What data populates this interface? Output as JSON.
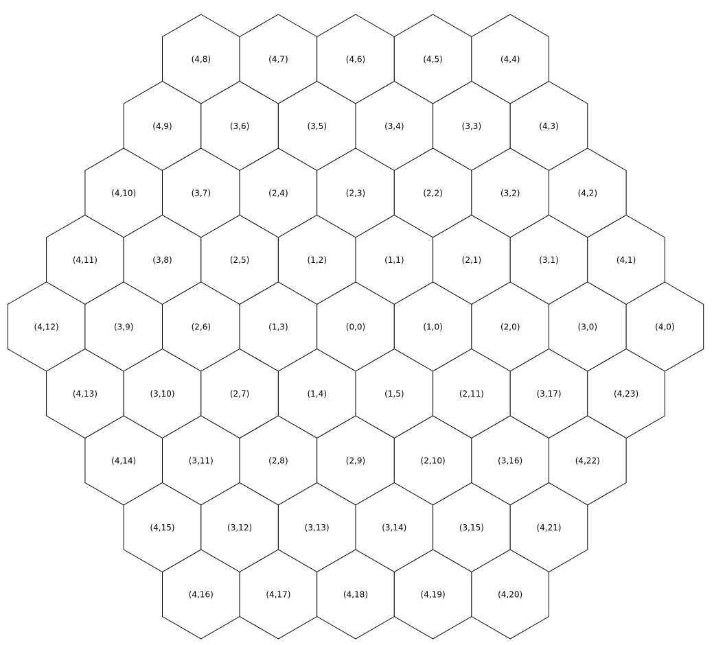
{
  "colors": {
    "background": "#ffffff",
    "stroke": "#000000",
    "text": "#000000"
  },
  "rows": [
    [
      "(4,8)",
      "(4,7)",
      "(4,6)",
      "(4,5)",
      "(4,4)"
    ],
    [
      "(4,9)",
      "(3,6)",
      "(3,5)",
      "(3,4)",
      "(3,3)",
      "(4,3)"
    ],
    [
      "(4,10)",
      "(3,7)",
      "(2,4)",
      "(2,3)",
      "(2,2)",
      "(3,2)",
      "(4,2)"
    ],
    [
      "(4,11)",
      "(3,8)",
      "(2,5)",
      "(1,2)",
      "(1,1)",
      "(2,1)",
      "(3,1)",
      "(4,1)"
    ],
    [
      "(4,12)",
      "(3,9)",
      "(2,6)",
      "(1,3)",
      "(0,0)",
      "(1,0)",
      "(2,0)",
      "(3,0)",
      "(4,0)"
    ],
    [
      "(4,13)",
      "(3,10)",
      "(2,7)",
      "(1,4)",
      "(1,5)",
      "(2,11)",
      "(3,17)",
      "(4,23)"
    ],
    [
      "(4,14)",
      "(3,11)",
      "(2,8)",
      "(2,9)",
      "(2,10)",
      "(3,16)",
      "(4,22)"
    ],
    [
      "(4,15)",
      "(3,12)",
      "(3,13)",
      "(3,14)",
      "(3,15)",
      "(4,21)"
    ],
    [
      "(4,16)",
      "(4,17)",
      "(4,18)",
      "(4,19)",
      "(4,20)"
    ]
  ]
}
